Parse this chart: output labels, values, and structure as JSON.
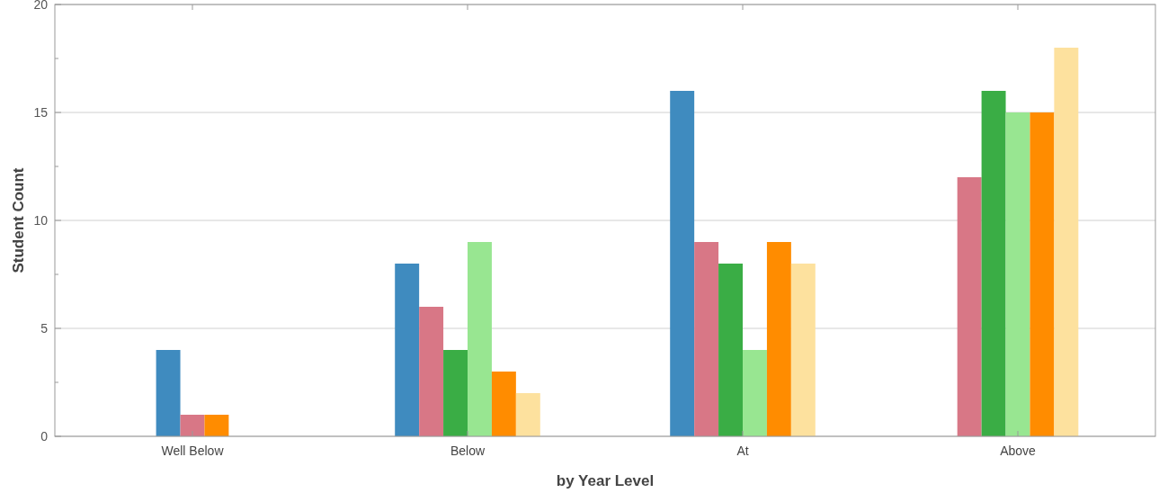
{
  "chart_data": {
    "type": "bar",
    "xlabel": "by Year Level",
    "ylabel": "Student Count",
    "categories": [
      "Well Below",
      "Below",
      "At",
      "Above"
    ],
    "series": [
      {
        "color": "#3f8bbf",
        "values": [
          4,
          8,
          16,
          null
        ]
      },
      {
        "color": "#d87786",
        "values": [
          1,
          6,
          9,
          12
        ]
      },
      {
        "color": "#3aad45",
        "values": [
          null,
          4,
          8,
          16
        ]
      },
      {
        "color": "#98e691",
        "values": [
          null,
          9,
          4,
          15
        ]
      },
      {
        "color": "#ff8c00",
        "values": [
          1,
          3,
          9,
          15
        ]
      },
      {
        "color": "#fde19e",
        "values": [
          null,
          2,
          8,
          18
        ]
      }
    ],
    "ylim": [
      0,
      20
    ],
    "yticks": [
      0,
      {
        "value": 2.5,
        "label": null
      },
      5,
      {
        "value": 7.5,
        "label": null
      },
      10,
      {
        "value": 12.5,
        "label": null
      },
      15,
      {
        "value": 17.5,
        "label": null
      },
      20
    ],
    "grid": "y"
  }
}
